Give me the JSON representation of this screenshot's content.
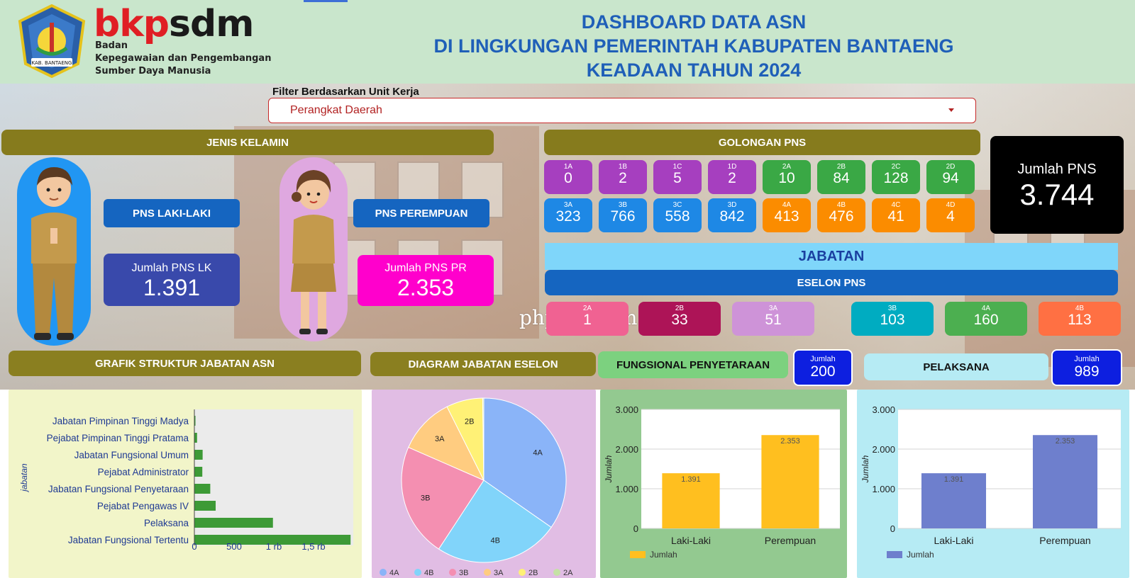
{
  "header": {
    "brand_part1": "bkp",
    "brand_part2": "sdm",
    "org_line1": "Badan",
    "org_line2": "Kepegawaian dan Pengembangan",
    "org_line3": "Sumber Daya Manusia",
    "crest_label": "KAB. BANTAENG",
    "title_line1": "DASHBOARD DATA ASN",
    "title_line2": "DI LINGKUNGAN PEMERINTAH KABUPATEN BANTAENG",
    "title_line3": "KEADAAN TAHUN 2024"
  },
  "filter": {
    "label": "Filter Berdasarkan Unit Kerja",
    "selected": "Perangkat Daerah"
  },
  "gender": {
    "banner": "JENIS KELAMIN",
    "male_label": "PNS LAKI-LAKI",
    "female_label": "PNS PEREMPUAN",
    "male_count_label": "Jumlah PNS LK",
    "male_count": "1.391",
    "female_count_label": "Jumlah PNS PR",
    "female_count": "2.353"
  },
  "golongan": {
    "banner": "GOLONGAN PNS",
    "row1": [
      {
        "k": "1A",
        "v": "0"
      },
      {
        "k": "1B",
        "v": "2"
      },
      {
        "k": "1C",
        "v": "5"
      },
      {
        "k": "1D",
        "v": "2"
      },
      {
        "k": "2A",
        "v": "10"
      },
      {
        "k": "2B",
        "v": "84"
      },
      {
        "k": "2C",
        "v": "128"
      },
      {
        "k": "2D",
        "v": "94"
      }
    ],
    "row2": [
      {
        "k": "3A",
        "v": "323"
      },
      {
        "k": "3B",
        "v": "766"
      },
      {
        "k": "3C",
        "v": "558"
      },
      {
        "k": "3D",
        "v": "842"
      },
      {
        "k": "4A",
        "v": "413"
      },
      {
        "k": "4B",
        "v": "476"
      },
      {
        "k": "4C",
        "v": "41"
      },
      {
        "k": "4D",
        "v": "4"
      }
    ],
    "colors": {
      "purple": "#a63fbf",
      "green": "#3aa845",
      "blue": "#1e88e5",
      "orange": "#fb8c00"
    }
  },
  "total": {
    "label": "Jumlah PNS",
    "value": "3.744"
  },
  "jabatan": {
    "banner": "JABATAN",
    "eselon_banner": "ESELON PNS",
    "eselon": [
      {
        "k": "2A",
        "v": "1"
      },
      {
        "k": "2B",
        "v": "33"
      },
      {
        "k": "3A",
        "v": "51"
      },
      {
        "k": "3B",
        "v": "103"
      },
      {
        "k": "4A",
        "v": "160"
      },
      {
        "k": "4B",
        "v": "113"
      }
    ],
    "watermark": "phpmu.com"
  },
  "sections": {
    "grafik": "GRAFIK STRUKTUR JABATAN ASN",
    "diagram": "DIAGRAM JABATAN ESELON",
    "fungsional": "FUNGSIONAL PENYETARAAN",
    "fungsional_jumlah_label": "Jumlah",
    "fungsional_jumlah": "200",
    "pelaksana": "PELAKSANA",
    "pelaksana_jumlah_label": "Jumlah",
    "pelaksana_jumlah": "989"
  },
  "chart_data": [
    {
      "type": "bar",
      "orientation": "horizontal",
      "categories": [
        "Jabatan Pimpinan Tinggi Madya",
        "Pejabat Pimpinan Tinggi Pratama",
        "Jabatan Fungsional Umum",
        "Pejabat Administrator",
        "Jabatan Fungsional Penyetaraan",
        "Pejabat Pengawas IV",
        "Pelaksana",
        "Jabatan Fungsional Tertentu"
      ],
      "values": [
        1,
        34,
        104,
        100,
        200,
        268,
        989,
        1966
      ],
      "ylabel": "jabatan",
      "xticks": [
        "0",
        "500",
        "1 rb",
        "1,5 rb"
      ],
      "xlim": [
        0,
        2000
      ],
      "color": "#3d9a36"
    },
    {
      "type": "pie",
      "labels": [
        "4A",
        "4B",
        "3B",
        "3A",
        "2B",
        "2A"
      ],
      "values": [
        160,
        113,
        103,
        51,
        33,
        1
      ],
      "colors": [
        "#8ab4f8",
        "#81d4fa",
        "#f48fb1",
        "#ffcc80",
        "#fff176",
        "#c5e1a5"
      ],
      "legend": "bottom"
    },
    {
      "type": "bar",
      "categories": [
        "Laki-Laki",
        "Perempuan"
      ],
      "values": [
        1391,
        2353
      ],
      "value_labels": [
        "1.391",
        "2.353"
      ],
      "yticks": [
        "0",
        "1.000",
        "2.000",
        "3.000"
      ],
      "ylim": [
        0,
        3000
      ],
      "ylabel": "Jumlah",
      "series_name": "Jumlah",
      "color": "#ffbf1f"
    },
    {
      "type": "bar",
      "categories": [
        "Laki-Laki",
        "Perempuan"
      ],
      "values": [
        1391,
        2353
      ],
      "value_labels": [
        "1.391",
        "2.353"
      ],
      "yticks": [
        "0",
        "1.000",
        "2.000",
        "3.000"
      ],
      "ylim": [
        0,
        3000
      ],
      "ylabel": "Jumlah",
      "series_name": "Jumlah",
      "color": "#6e7fcd"
    }
  ]
}
